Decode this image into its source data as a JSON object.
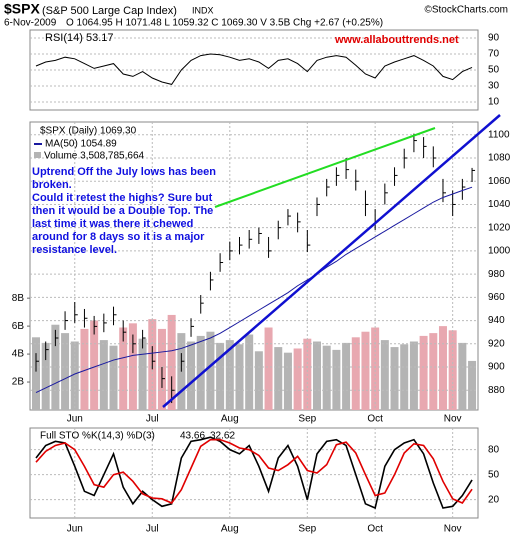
{
  "header": {
    "symbol": "$SPX",
    "name": "(S&P 500 Large Cap Index)",
    "exchange": "INDX",
    "credit": "©StockCharts.com",
    "date": "6-Nov-2009",
    "quote": "O 1064.95  H 1071.48  L 1059.32  C 1069.30  V 3.5B  Chg +2.67 (+0.25%)"
  },
  "chart_data": [
    {
      "type": "line",
      "title": "RSI(14) 53.17",
      "annotation": "www.allabouttrends.net",
      "color": "#000000",
      "values": [
        55,
        60,
        62,
        66,
        64,
        58,
        52,
        55,
        58,
        45,
        42,
        48,
        40,
        35,
        32,
        50,
        62,
        68,
        70,
        69,
        66,
        62,
        64,
        60,
        52,
        62,
        64,
        58,
        48,
        62,
        66,
        68,
        66,
        56,
        45,
        40,
        55,
        60,
        64,
        68,
        62,
        55,
        42,
        38,
        48,
        53.17
      ],
      "ylim": [
        0,
        100
      ],
      "yticks": [
        90,
        70,
        50,
        30,
        10
      ],
      "grid": true
    },
    {
      "type": "ohlc",
      "title": "$SPX (Daily) 1069.30",
      "color": "#000000",
      "categories": [
        null,
        null,
        null,
        null,
        "Jun",
        null,
        null,
        null,
        null,
        null,
        null,
        null,
        "Jul",
        null,
        null,
        null,
        null,
        null,
        null,
        null,
        "Aug",
        null,
        null,
        null,
        null,
        null,
        null,
        null,
        "Sep",
        null,
        null,
        null,
        null,
        null,
        null,
        "Oct",
        null,
        null,
        null,
        null,
        null,
        null,
        null,
        "Nov",
        null,
        null
      ],
      "high": [
        912,
        922,
        932,
        948,
        956,
        950,
        944,
        946,
        952,
        940,
        928,
        932,
        918,
        900,
        892,
        912,
        942,
        962,
        982,
        998,
        1008,
        1012,
        1018,
        1020,
        1012,
        1026,
        1036,
        1033,
        1018,
        1046,
        1062,
        1072,
        1080,
        1070,
        1052,
        1036,
        1058,
        1072,
        1088,
        1101,
        1098,
        1090,
        1062,
        1052,
        1062,
        1071.48
      ],
      "low": [
        896,
        906,
        918,
        932,
        938,
        934,
        928,
        930,
        936,
        922,
        912,
        916,
        898,
        882,
        869,
        896,
        926,
        946,
        966,
        982,
        992,
        997,
        1002,
        1006,
        994,
        1010,
        1022,
        1016,
        999,
        1030,
        1047,
        1056,
        1062,
        1052,
        1030,
        1018,
        1040,
        1056,
        1071,
        1085,
        1080,
        1072,
        1042,
        1030,
        1044,
        1059.32
      ],
      "close": [
        905,
        915,
        925,
        940,
        945,
        942,
        935,
        938,
        945,
        930,
        920,
        925,
        905,
        890,
        880,
        905,
        935,
        955,
        975,
        990,
        1000,
        1005,
        1010,
        1015,
        1000,
        1020,
        1030,
        1025,
        1005,
        1040,
        1055,
        1065,
        1070,
        1060,
        1040,
        1025,
        1050,
        1065,
        1080,
        1095,
        1090,
        1080,
        1050,
        1040,
        1055,
        1069.3
      ],
      "series": [
        {
          "name": "MA(50) 1054.89",
          "color": "#1a1aa0",
          "values": [
            878,
            882,
            886,
            890,
            894,
            897,
            900,
            903,
            906,
            908,
            910,
            911,
            912,
            913,
            914,
            916,
            919,
            922,
            925,
            929,
            934,
            939,
            944,
            949,
            954,
            959,
            964,
            970,
            975,
            980,
            986,
            991,
            997,
            1002,
            1007,
            1012,
            1017,
            1022,
            1027,
            1032,
            1037,
            1042,
            1046,
            1049,
            1052,
            1054.89
          ]
        }
      ],
      "volume": {
        "name": "Volume 3,508,785,664",
        "up_color": "#b4b4b4",
        "down_color": "#e8a8b0",
        "values": [
          5.2,
          4.8,
          6.1,
          5.5,
          4.9,
          5.8,
          6.4,
          5.0,
          4.6,
          5.9,
          6.2,
          5.1,
          6.5,
          5.8,
          6.8,
          5.5,
          4.9,
          5.3,
          5.6,
          4.8,
          5.0,
          4.7,
          5.4,
          4.2,
          5.9,
          4.5,
          4.1,
          4.4,
          5.1,
          4.9,
          4.6,
          4.3,
          4.8,
          5.2,
          5.6,
          5.9,
          5.0,
          4.5,
          4.7,
          4.9,
          5.3,
          5.5,
          6.0,
          5.7,
          4.8,
          3.51
        ],
        "ylim": [
          0,
          20.6
        ],
        "yticks": [
          {
            "value": 2,
            "label": "2B"
          },
          {
            "value": 4,
            "label": "4B"
          },
          {
            "value": 6,
            "label": "6B"
          },
          {
            "value": 8,
            "label": "8B"
          }
        ]
      },
      "annotation": [
        "Uptrend Off the July lows has been",
        "broken.",
        "Could it retest the highs? Sure but",
        "then it would be a Double Top. The",
        "last time it was there it chewed",
        "around for 8 days so it is a major",
        "resistance level."
      ],
      "ylim": [
        863,
        1111
      ],
      "yticks": [
        1100,
        1080,
        1060,
        1040,
        1020,
        1000,
        980,
        960,
        940,
        920,
        900,
        880
      ],
      "grid": true
    },
    {
      "type": "line",
      "title": "Full STO %K(14,3) %D(3)",
      "categories": [
        null,
        null,
        null,
        null,
        "Jun",
        null,
        null,
        null,
        null,
        null,
        null,
        null,
        "Jul",
        null,
        null,
        null,
        null,
        null,
        null,
        null,
        "Aug",
        null,
        null,
        null,
        null,
        null,
        null,
        null,
        "Sep",
        null,
        null,
        null,
        null,
        null,
        null,
        "Oct",
        null,
        null,
        null,
        null,
        null,
        null,
        null,
        "Nov",
        null,
        null
      ],
      "series": [
        {
          "name": "43.66",
          "color": "#000000",
          "values": [
            70,
            85,
            90,
            88,
            60,
            30,
            25,
            50,
            75,
            35,
            15,
            30,
            20,
            12,
            15,
            70,
            90,
            92,
            95,
            90,
            80,
            75,
            85,
            60,
            30,
            70,
            85,
            60,
            20,
            75,
            90,
            92,
            85,
            50,
            15,
            10,
            60,
            80,
            88,
            92,
            75,
            40,
            10,
            12,
            25,
            43.66
          ]
        },
        {
          "name": "32.62",
          "color": "#e00000",
          "values": [
            65,
            78,
            85,
            88,
            80,
            60,
            38,
            35,
            50,
            53,
            42,
            27,
            22,
            21,
            16,
            32,
            58,
            84,
            92,
            92,
            88,
            82,
            80,
            73,
            58,
            55,
            62,
            72,
            55,
            52,
            62,
            86,
            89,
            76,
            50,
            25,
            28,
            50,
            76,
            87,
            85,
            69,
            42,
            21,
            16,
            32.62
          ]
        }
      ],
      "ylim": [
        -2,
        106
      ],
      "yticks": [
        80,
        50,
        20
      ],
      "grid": true
    }
  ]
}
